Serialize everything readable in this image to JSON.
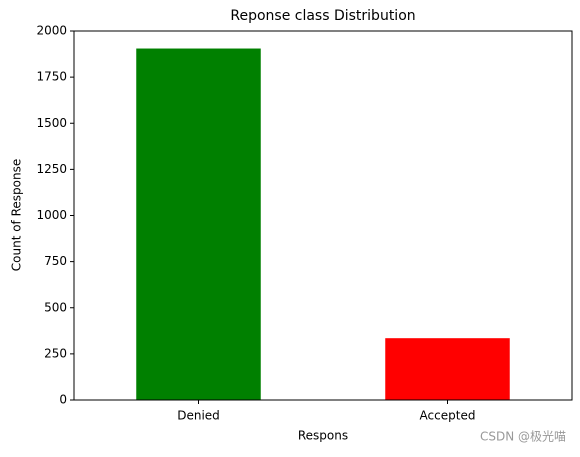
{
  "chart_data": {
    "type": "bar",
    "title": "Reponse class Distribution",
    "x_label": "Respons",
    "y_label": "Count of Response",
    "categories": [
      "Denied",
      "Accepted"
    ],
    "values": [
      1905,
      335
    ],
    "colors": [
      "#008000",
      "#ff0000"
    ],
    "ylim": [
      0,
      2000
    ],
    "yticks": [
      0,
      250,
      500,
      750,
      1000,
      1250,
      1500,
      1750,
      2000
    ],
    "grid": false,
    "watermark": "CSDN @极光喵"
  }
}
